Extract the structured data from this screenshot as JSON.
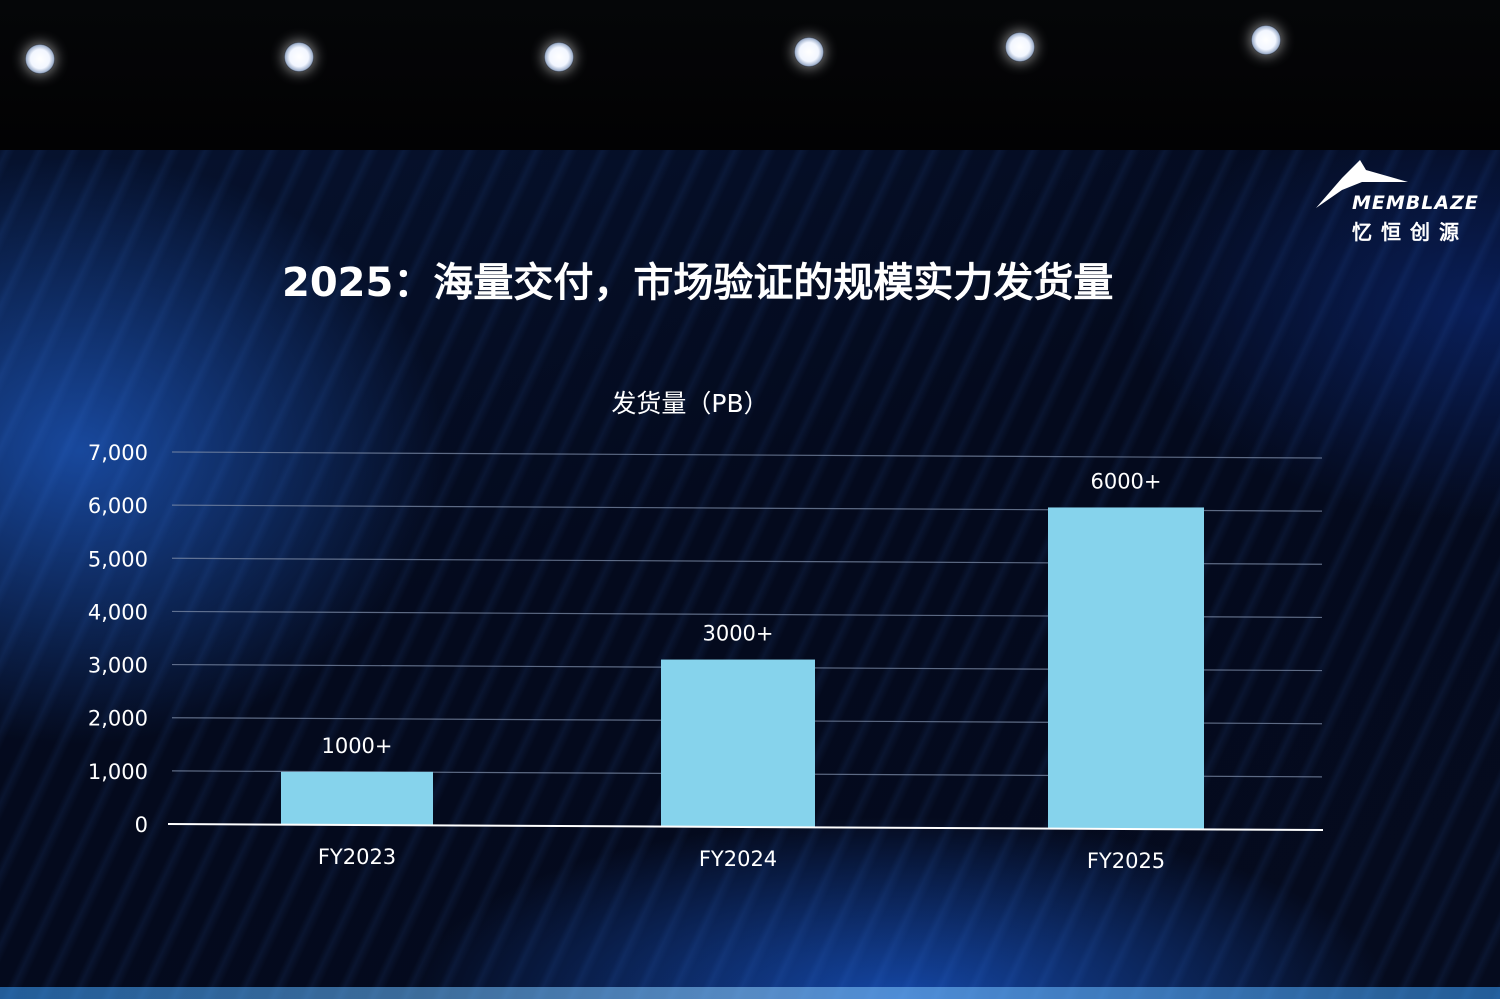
{
  "slide": {
    "title": "2025：海量交付，市场验证的规模实力发货量",
    "logo_text": "MEMBLAZE",
    "logo_cn": "忆恒创源"
  },
  "colors": {
    "bar": "#86d3ec",
    "text": "#ffffff",
    "grid": "#7b8aa6"
  },
  "chart_data": {
    "type": "bar",
    "title": "发货量（PB）",
    "categories": [
      "FY2023",
      "FY2024",
      "FY2025"
    ],
    "values": [
      1000,
      3150,
      6050
    ],
    "data_labels": [
      "1000+",
      "3000+",
      "6000+"
    ],
    "ylim": [
      0,
      7000
    ],
    "yticks": [
      0,
      1000,
      2000,
      3000,
      4000,
      5000,
      6000,
      7000
    ],
    "ytick_labels": [
      "0",
      "1,000",
      "2,000",
      "3,000",
      "4,000",
      "5,000",
      "6,000",
      "7,000"
    ],
    "grid": true
  }
}
